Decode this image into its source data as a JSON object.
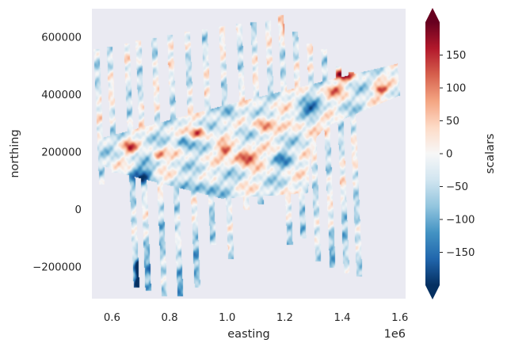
{
  "chart_data": {
    "type": "heatmap",
    "title": "",
    "xlabel": "easting",
    "ylabel": "northing",
    "x_offset_text": "1e6",
    "xlim": [
      530000,
      1620000
    ],
    "ylim": [
      -310000,
      700000
    ],
    "x_ticks": [
      0.6,
      0.8,
      1.0,
      1.2,
      1.4,
      1.6
    ],
    "x_tick_labels": [
      "0.6",
      "0.8",
      "1.0",
      "1.2",
      "1.4",
      "1.6"
    ],
    "y_ticks": [
      600000,
      400000,
      200000,
      0,
      -200000
    ],
    "y_tick_labels": [
      "600000",
      "400000",
      "200000",
      "0",
      "−200000"
    ],
    "colorbar": {
      "label": "scalars",
      "cmap": "RdBu_r",
      "range": [
        -200,
        200
      ],
      "extend": "both",
      "ticks": [
        150,
        100,
        50,
        0,
        -50,
        -100,
        -150
      ],
      "tick_labels": [
        "150",
        "100",
        "50",
        "0",
        "−50",
        "−100",
        "−150"
      ]
    },
    "background_color": "#eaeaf2",
    "survey_lines": [
      {
        "x": 545000,
        "y_start": 560000,
        "y_end": 90000
      },
      {
        "x": 590000,
        "y_start": 570000,
        "y_end": 130000
      },
      {
        "x": 650000,
        "y_start": 580000,
        "y_end": -270000
      },
      {
        "x": 690000,
        "y_start": 590000,
        "y_end": -280000
      },
      {
        "x": 745000,
        "y_start": 600000,
        "y_end": -300000
      },
      {
        "x": 800000,
        "y_start": 610000,
        "y_end": -300000
      },
      {
        "x": 860000,
        "y_start": 620000,
        "y_end": -270000
      },
      {
        "x": 920000,
        "y_start": 630000,
        "y_end": -120000
      },
      {
        "x": 980000,
        "y_start": 640000,
        "y_end": -170000
      },
      {
        "x": 1040000,
        "y_start": 650000,
        "y_end": 0
      },
      {
        "x": 1090000,
        "y_start": 655000,
        "y_end": 20000
      },
      {
        "x": 1140000,
        "y_start": 660000,
        "y_end": 50000
      },
      {
        "x": 1185000,
        "y_start": 680000,
        "y_end": -120000
      },
      {
        "x": 1235000,
        "y_start": 620000,
        "y_end": -100000
      },
      {
        "x": 1285000,
        "y_start": 580000,
        "y_end": -180000
      },
      {
        "x": 1335000,
        "y_start": 560000,
        "y_end": -200000
      },
      {
        "x": 1385000,
        "y_start": 500000,
        "y_end": -220000
      },
      {
        "x": 1430000,
        "y_start": 480000,
        "y_end": -230000
      }
    ],
    "anomalies": [
      {
        "x": 1060000,
        "y": 185000,
        "value": 210,
        "sx": 40000,
        "sy": 25000
      },
      {
        "x": 990000,
        "y": 210000,
        "value": 150,
        "sx": 22000,
        "sy": 18000
      },
      {
        "x": 900000,
        "y": 270000,
        "value": 150,
        "sx": 30000,
        "sy": 20000
      },
      {
        "x": 1400000,
        "y": 470000,
        "value": 170,
        "sx": 35000,
        "sy": 18000
      },
      {
        "x": 1530000,
        "y": 420000,
        "value": 160,
        "sx": 25000,
        "sy": 15000
      },
      {
        "x": 660000,
        "y": 220000,
        "value": 130,
        "sx": 22000,
        "sy": 20000
      },
      {
        "x": 760000,
        "y": 190000,
        "value": 120,
        "sx": 25000,
        "sy": 18000
      },
      {
        "x": 1120000,
        "y": 300000,
        "value": 110,
        "sx": 30000,
        "sy": 30000
      },
      {
        "x": 1240000,
        "y": 300000,
        "value": 90,
        "sx": 40000,
        "sy": 20000
      },
      {
        "x": 1290000,
        "y": 350000,
        "value": -120,
        "sx": 40000,
        "sy": 25000
      },
      {
        "x": 700000,
        "y": 120000,
        "value": -130,
        "sx": 45000,
        "sy": 35000
      },
      {
        "x": 920000,
        "y": 80000,
        "value": -90,
        "sx": 50000,
        "sy": 30000
      },
      {
        "x": 850000,
        "y": 240000,
        "value": -110,
        "sx": 25000,
        "sy": 25000
      },
      {
        "x": 1010000,
        "y": 330000,
        "value": -100,
        "sx": 25000,
        "sy": 25000
      },
      {
        "x": 1190000,
        "y": 180000,
        "value": -80,
        "sx": 30000,
        "sy": 25000
      },
      {
        "x": 1370000,
        "y": 420000,
        "value": 100,
        "sx": 35000,
        "sy": 20000
      },
      {
        "x": 1330000,
        "y": 280000,
        "value": 40,
        "sx": 40000,
        "sy": 25000
      },
      {
        "x": 1200000,
        "y": 630000,
        "value": 130,
        "sx": 10000,
        "sy": 40000
      },
      {
        "x": 650000,
        "y": -50000,
        "value": 150,
        "sx": 10000,
        "sy": 30000
      },
      {
        "x": 800000,
        "y": -280000,
        "value": 140,
        "sx": 12000,
        "sy": 30000
      },
      {
        "x": 990000,
        "y": -140000,
        "value": 140,
        "sx": 12000,
        "sy": 20000
      },
      {
        "x": 1040000,
        "y": 20000,
        "value": 110,
        "sx": 12000,
        "sy": 25000
      },
      {
        "x": 745000,
        "y": -220000,
        "value": -170,
        "sx": 12000,
        "sy": 60000
      },
      {
        "x": 690000,
        "y": -220000,
        "value": -160,
        "sx": 12000,
        "sy": 60000
      },
      {
        "x": 860000,
        "y": -150000,
        "value": -110,
        "sx": 12000,
        "sy": 60000
      }
    ]
  }
}
